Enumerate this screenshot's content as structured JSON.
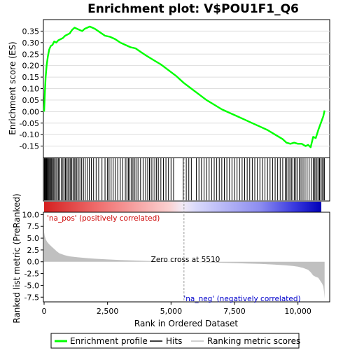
{
  "chart_data": [
    {
      "type": "line",
      "title": "Enrichment plot: V$POU1F1_Q6",
      "ylabel": "Enrichment score (ES)",
      "xlim": [
        0,
        11250
      ],
      "ylim": [
        -0.2,
        0.4
      ],
      "yticks": [
        -0.15,
        -0.1,
        -0.05,
        0.0,
        0.05,
        0.1,
        0.15,
        0.2,
        0.25,
        0.3,
        0.35
      ],
      "ytick_labels": [
        "-0.15",
        "-0.10",
        "-0.05",
        "0.00",
        "0.05",
        "0.10",
        "0.15",
        "0.20",
        "0.25",
        "0.30",
        "0.35"
      ],
      "grid": true,
      "color": "#00ff00",
      "series": [
        {
          "name": "Enrichment profile",
          "x": [
            0,
            30,
            60,
            100,
            150,
            200,
            260,
            330,
            400,
            480,
            560,
            650,
            740,
            830,
            920,
            1010,
            1100,
            1200,
            1300,
            1400,
            1500,
            1600,
            1700,
            1800,
            1900,
            2000,
            2200,
            2400,
            2600,
            2800,
            3000,
            3200,
            3400,
            3600,
            3800,
            4000,
            4300,
            4600,
            4900,
            5200,
            5500,
            5800,
            6100,
            6400,
            6700,
            7000,
            7300,
            7600,
            7900,
            8200,
            8500,
            8800,
            9100,
            9400,
            9550,
            9700,
            9850,
            10000,
            10150,
            10300,
            10400,
            10500,
            10600,
            10700,
            10800,
            10900,
            11000,
            11050
          ],
          "y": [
            0.0,
            0.08,
            0.15,
            0.2,
            0.24,
            0.27,
            0.285,
            0.29,
            0.305,
            0.3,
            0.31,
            0.315,
            0.32,
            0.33,
            0.335,
            0.34,
            0.355,
            0.365,
            0.36,
            0.355,
            0.35,
            0.36,
            0.365,
            0.37,
            0.365,
            0.36,
            0.345,
            0.33,
            0.325,
            0.315,
            0.3,
            0.29,
            0.28,
            0.275,
            0.26,
            0.245,
            0.225,
            0.205,
            0.18,
            0.155,
            0.125,
            0.1,
            0.075,
            0.05,
            0.03,
            0.01,
            -0.005,
            -0.02,
            -0.035,
            -0.05,
            -0.065,
            -0.08,
            -0.1,
            -0.12,
            -0.135,
            -0.14,
            -0.135,
            -0.14,
            -0.14,
            -0.15,
            -0.145,
            -0.155,
            -0.11,
            -0.115,
            -0.08,
            -0.05,
            -0.02,
            0.005
          ]
        }
      ]
    },
    {
      "type": "scatter",
      "description_of_marks": "hits",
      "hit_positions": [
        10,
        25,
        40,
        60,
        85,
        110,
        140,
        170,
        200,
        235,
        270,
        300,
        340,
        380,
        420,
        470,
        520,
        570,
        620,
        680,
        740,
        790,
        840,
        890,
        940,
        990,
        1040,
        1090,
        1140,
        1190,
        1240,
        1290,
        1350,
        1410,
        1480,
        1550,
        1620,
        1700,
        1780,
        1860,
        1950,
        2050,
        2150,
        2280,
        2400,
        2500,
        2560,
        2640,
        2720,
        2800,
        2900,
        3000,
        3100,
        3200,
        3260,
        3320,
        3380,
        3440,
        3500,
        3560,
        3620,
        3700,
        3800,
        3900,
        4000,
        4080,
        4150,
        4220,
        4290,
        4360,
        4430,
        4500,
        4600,
        4700,
        4800,
        4900,
        5000,
        5100,
        5480,
        5600,
        5700,
        5800,
        6000,
        6100,
        6200,
        6300,
        6400,
        6500,
        6600,
        6700,
        6800,
        6900,
        7000,
        7100,
        7200,
        7300,
        7400,
        7500,
        7600,
        7700,
        7800,
        7900,
        8000,
        8100,
        8200,
        8300,
        8400,
        8500,
        8600,
        8700,
        8800,
        8900,
        9000,
        9100,
        9200,
        9300,
        9400,
        9500,
        9560,
        9620,
        9680,
        9740,
        9800,
        9860,
        9920,
        9980,
        10050,
        10120,
        10200,
        10280,
        10360,
        10440,
        10520,
        10600,
        10650,
        10700,
        10750,
        10800,
        10850,
        10900,
        10950,
        11000,
        11040
      ]
    },
    {
      "type": "area",
      "xlabel": "Rank in Ordered Dataset",
      "ylabel": "Ranked list metric (PreRanked)",
      "xlim": [
        0,
        11250
      ],
      "ylim": [
        -8.5,
        10.5
      ],
      "yticks": [
        -7.5,
        -5.0,
        -2.5,
        0.0,
        2.5,
        5.0,
        7.5,
        10.0
      ],
      "ytick_labels": [
        "-7.5",
        "-5.0",
        "-2.5",
        "0.0",
        "2.5",
        "5.0",
        "7.5",
        "10.0"
      ],
      "xticks": [
        0,
        2500,
        5000,
        7500,
        10000
      ],
      "xtick_labels": [
        "0",
        "2,500",
        "5,000",
        "7,500",
        "10,000"
      ],
      "series": [
        {
          "name": "Ranking metric scores",
          "x": [
            0,
            20,
            60,
            120,
            200,
            300,
            400,
            500,
            600,
            800,
            1000,
            1300,
            1600,
            2000,
            2500,
            3000,
            3500,
            4000,
            4500,
            5000,
            5510,
            6000,
            6500,
            7000,
            7500,
            8000,
            8500,
            9000,
            9500,
            9800,
            10000,
            10200,
            10400,
            10500,
            10600,
            10700,
            10800,
            10900,
            10950,
            11000,
            11030,
            11050
          ],
          "y": [
            6.3,
            5.6,
            4.8,
            4.2,
            3.7,
            3.2,
            2.7,
            2.2,
            1.8,
            1.4,
            1.15,
            0.95,
            0.8,
            0.65,
            0.5,
            0.38,
            0.28,
            0.19,
            0.11,
            0.05,
            0.0,
            -0.06,
            -0.13,
            -0.2,
            -0.28,
            -0.36,
            -0.46,
            -0.58,
            -0.75,
            -0.9,
            -1.05,
            -1.3,
            -1.7,
            -2.2,
            -2.9,
            -3.2,
            -3.4,
            -4.2,
            -4.6,
            -5.2,
            -6.5,
            -7.8
          ]
        }
      ],
      "annotations": {
        "zero_cross": "Zero cross at 5510",
        "pos_label": "'na_pos' (positively correlated)",
        "neg_label": "'na_neg' (negatively correlated)"
      }
    }
  ],
  "legend": {
    "items": [
      {
        "label": "Enrichment profile",
        "color": "#00ff00"
      },
      {
        "label": "Hits",
        "color": "#000000"
      },
      {
        "label": "Ranking metric scores",
        "color": "#c0c0c0"
      }
    ]
  },
  "colors": {
    "profile": "#00ff00",
    "pos_text": "#cc0000",
    "neg_text": "#0000cc",
    "metric_fill": "#c0c0c0",
    "grid": "#dddddd"
  }
}
